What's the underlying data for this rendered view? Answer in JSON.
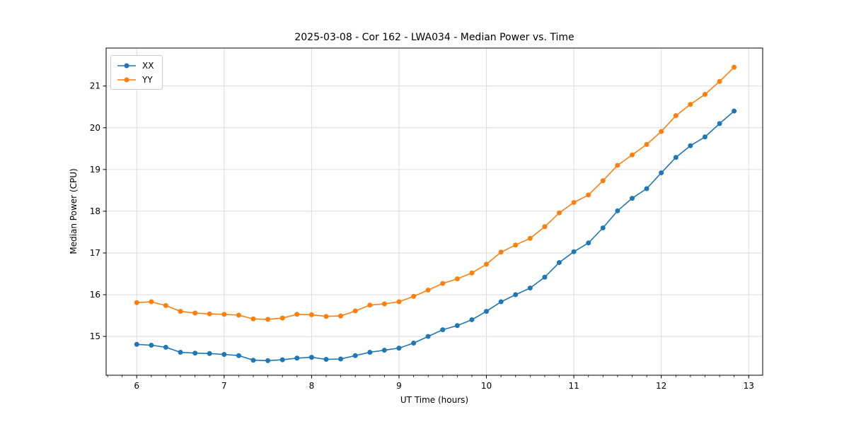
{
  "chart_data": {
    "type": "line",
    "title": "2025-03-08 - Cor 162 - LWA034 - Median Power vs. Time",
    "xlabel": "UT Time (hours)",
    "ylabel": "Median Power (CPU)",
    "xlim": [
      5.65,
      13.16
    ],
    "ylim": [
      14.07,
      21.91
    ],
    "xticks": [
      6,
      7,
      8,
      9,
      10,
      11,
      12,
      13
    ],
    "yticks": [
      15,
      16,
      17,
      18,
      19,
      20,
      21
    ],
    "x_minor_step": 0.16667,
    "grid": true,
    "legend_position": "upper-left",
    "x": [
      6.0,
      6.167,
      6.333,
      6.5,
      6.667,
      6.833,
      7.0,
      7.167,
      7.333,
      7.5,
      7.667,
      7.833,
      8.0,
      8.167,
      8.333,
      8.5,
      8.667,
      8.833,
      9.0,
      9.167,
      9.333,
      9.5,
      9.667,
      9.833,
      10.0,
      10.167,
      10.333,
      10.5,
      10.667,
      10.833,
      11.0,
      11.167,
      11.333,
      11.5,
      11.667,
      11.833,
      12.0,
      12.167,
      12.333,
      12.5,
      12.667,
      12.833
    ],
    "series": [
      {
        "name": "XX",
        "color": "#1f77b4",
        "values": [
          14.81,
          14.79,
          14.74,
          14.62,
          14.6,
          14.59,
          14.57,
          14.54,
          14.43,
          14.42,
          14.44,
          14.48,
          14.5,
          14.45,
          14.46,
          14.54,
          14.62,
          14.67,
          14.72,
          14.84,
          15.0,
          15.16,
          15.26,
          15.4,
          15.6,
          15.83,
          16.0,
          16.16,
          16.42,
          16.77,
          17.03,
          17.24,
          17.6,
          18.01,
          18.31,
          18.54,
          18.92,
          19.29,
          19.57,
          19.78,
          20.1,
          20.4
        ]
      },
      {
        "name": "YY",
        "color": "#ff7f0e",
        "values": [
          15.81,
          15.83,
          15.74,
          15.6,
          15.56,
          15.54,
          15.53,
          15.51,
          15.42,
          15.41,
          15.44,
          15.53,
          15.52,
          15.48,
          15.49,
          15.61,
          15.75,
          15.78,
          15.83,
          15.96,
          16.11,
          16.27,
          16.38,
          16.52,
          16.73,
          17.02,
          17.19,
          17.35,
          17.63,
          17.96,
          18.21,
          18.39,
          18.73,
          19.1,
          19.35,
          19.6,
          19.91,
          20.29,
          20.56,
          20.8,
          21.11,
          21.45
        ]
      }
    ]
  }
}
